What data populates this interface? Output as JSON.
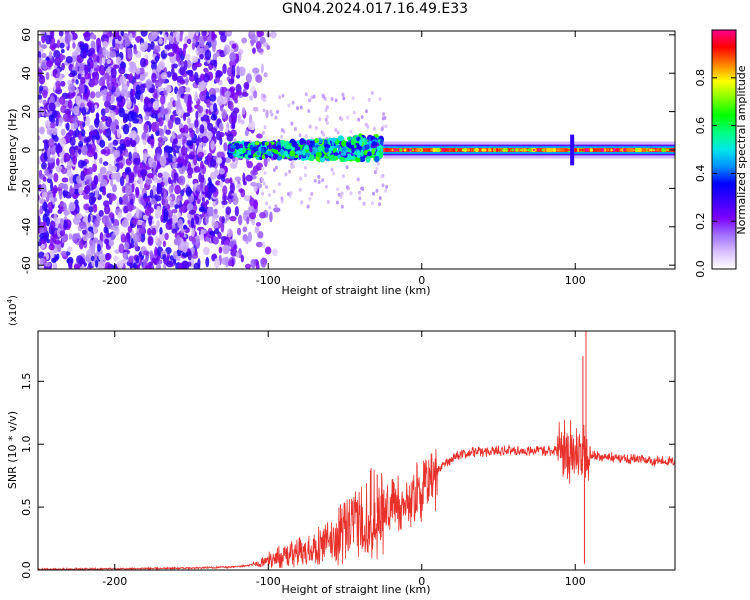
{
  "title": "GN04.2024.017.16.49.E33",
  "chart_data": [
    {
      "type": "heatmap",
      "xlabel": "Height of straight line (km)",
      "ylabel": "Frequency (Hz)",
      "xlim": [
        -250,
        165
      ],
      "ylim": [
        -62,
        62
      ],
      "xticks": [
        -200,
        -100,
        0,
        100
      ],
      "xtick_labels": [
        "-200",
        "-100",
        "0",
        "100"
      ],
      "yticks": [
        -60,
        -40,
        -20,
        0,
        20,
        40,
        60
      ],
      "ytick_labels": [
        "-60",
        "-40",
        "-20",
        "0",
        "20",
        "40",
        "60"
      ],
      "colorbar": {
        "label": "Normalized spectral amplitude",
        "range": [
          0,
          1
        ],
        "ticks": [
          0.0,
          0.2,
          0.4,
          0.6,
          0.8
        ],
        "tick_labels": [
          "0.0",
          "0.2",
          "0.4",
          "0.6",
          "0.8"
        ],
        "colormap": [
          "#ffffff",
          "#d9bfff",
          "#a070ff",
          "#7b00ff",
          "#3b00ff",
          "#0000ff",
          "#0090ff",
          "#00e8e8",
          "#00ff80",
          "#00ff00",
          "#80ff00",
          "#ffff00",
          "#ff8000",
          "#ff0000",
          "#ff0090"
        ]
      },
      "features": {
        "noise_region_km": [
          -250,
          -105
        ],
        "noise_amplitude": 0.15,
        "transition_region_km": [
          -125,
          -25
        ],
        "transition_amplitude": 0.5,
        "tone_region_km": [
          -25,
          165
        ],
        "tone_frequency_hz": 0,
        "tone_amplitude": 0.9,
        "tone_halfwidth_hz": 2,
        "glitch_km": 98
      }
    },
    {
      "type": "line",
      "xlabel": "Height of straight line (km)",
      "ylabel": "SNR (10 * v/v)",
      "y_multiplier": "(x10",
      "y_multiplier_exp": "4",
      "y_multiplier_close": ")",
      "xlim": [
        -250,
        165
      ],
      "ylim": [
        0,
        19000
      ],
      "xticks": [
        -200,
        -100,
        0,
        100
      ],
      "xtick_labels": [
        "-200",
        "-100",
        "0",
        "100"
      ],
      "yticks": [
        0,
        5000,
        10000,
        15000
      ],
      "ytick_labels": [
        "0.0",
        "0.5",
        "1.0",
        "1.5"
      ],
      "color": "#e8312b",
      "series": [
        {
          "x": [
            -250,
            -200,
            -150,
            -120,
            -105,
            -95,
            -85,
            -75,
            -65,
            -55,
            -45,
            -35,
            -25,
            -15,
            -5,
            5,
            15,
            25,
            35,
            50,
            70,
            85,
            92,
            100,
            104,
            108,
            115,
            130,
            150,
            165
          ],
          "y": [
            50,
            100,
            150,
            250,
            500,
            1000,
            1300,
            1500,
            1900,
            2600,
            3300,
            4200,
            4800,
            5300,
            5700,
            7200,
            8500,
            9200,
            9400,
            9500,
            9500,
            9500,
            9600,
            9000,
            9000,
            9100,
            9000,
            8900,
            8700,
            8600
          ]
        }
      ],
      "spikes": [
        {
          "x": -53,
          "y": 5200
        },
        {
          "x": -33,
          "y": 8100
        },
        {
          "x": -29,
          "y": 7600
        },
        {
          "x": -18,
          "y": 6900
        },
        {
          "x": -3,
          "y": 8400
        },
        {
          "x": 97,
          "y": 11900
        },
        {
          "x": 105,
          "y": 17000
        },
        {
          "x": 106,
          "y": 500
        },
        {
          "x": 107,
          "y": 19000
        }
      ]
    }
  ]
}
